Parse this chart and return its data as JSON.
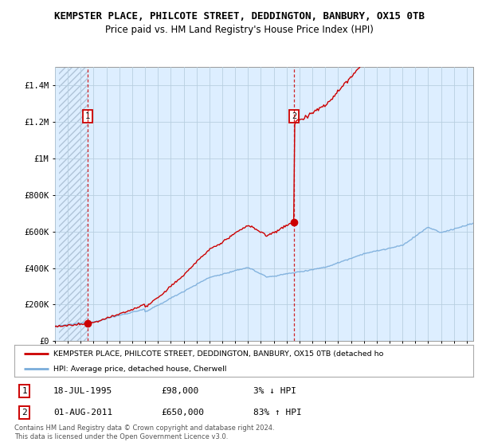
{
  "title": "KEMPSTER PLACE, PHILCOTE STREET, DEDDINGTON, BANBURY, OX15 0TB",
  "subtitle": "Price paid vs. HM Land Registry's House Price Index (HPI)",
  "ylim": [
    0,
    1500000
  ],
  "yticks": [
    0,
    200000,
    400000,
    600000,
    800000,
    1000000,
    1200000,
    1400000
  ],
  "ytick_labels": [
    "£0",
    "£200K",
    "£400K",
    "£600K",
    "£800K",
    "£1M",
    "£1.2M",
    "£1.4M"
  ],
  "xlim_start": 1993.3,
  "xlim_end": 2025.5,
  "point1_x": 1995.54,
  "point1_y": 98000,
  "point2_x": 2011.58,
  "point2_y": 650000,
  "red_color": "#cc0000",
  "blue_color": "#7aaddb",
  "bg_color": "#ddeeff",
  "hatch_color": "#b0c4d8",
  "grid_color": "#b8cfe0",
  "legend_label_red": "KEMPSTER PLACE, PHILCOTE STREET, DEDDINGTON, BANBURY, OX15 0TB (detached ho",
  "legend_label_blue": "HPI: Average price, detached house, Cherwell",
  "table_row1": [
    "1",
    "18-JUL-1995",
    "£98,000",
    "3% ↓ HPI"
  ],
  "table_row2": [
    "2",
    "01-AUG-2011",
    "£650,000",
    "83% ↑ HPI"
  ],
  "footnote": "Contains HM Land Registry data © Crown copyright and database right 2024.\nThis data is licensed under the Open Government Licence v3.0.",
  "title_fontsize": 9,
  "subtitle_fontsize": 8.5
}
